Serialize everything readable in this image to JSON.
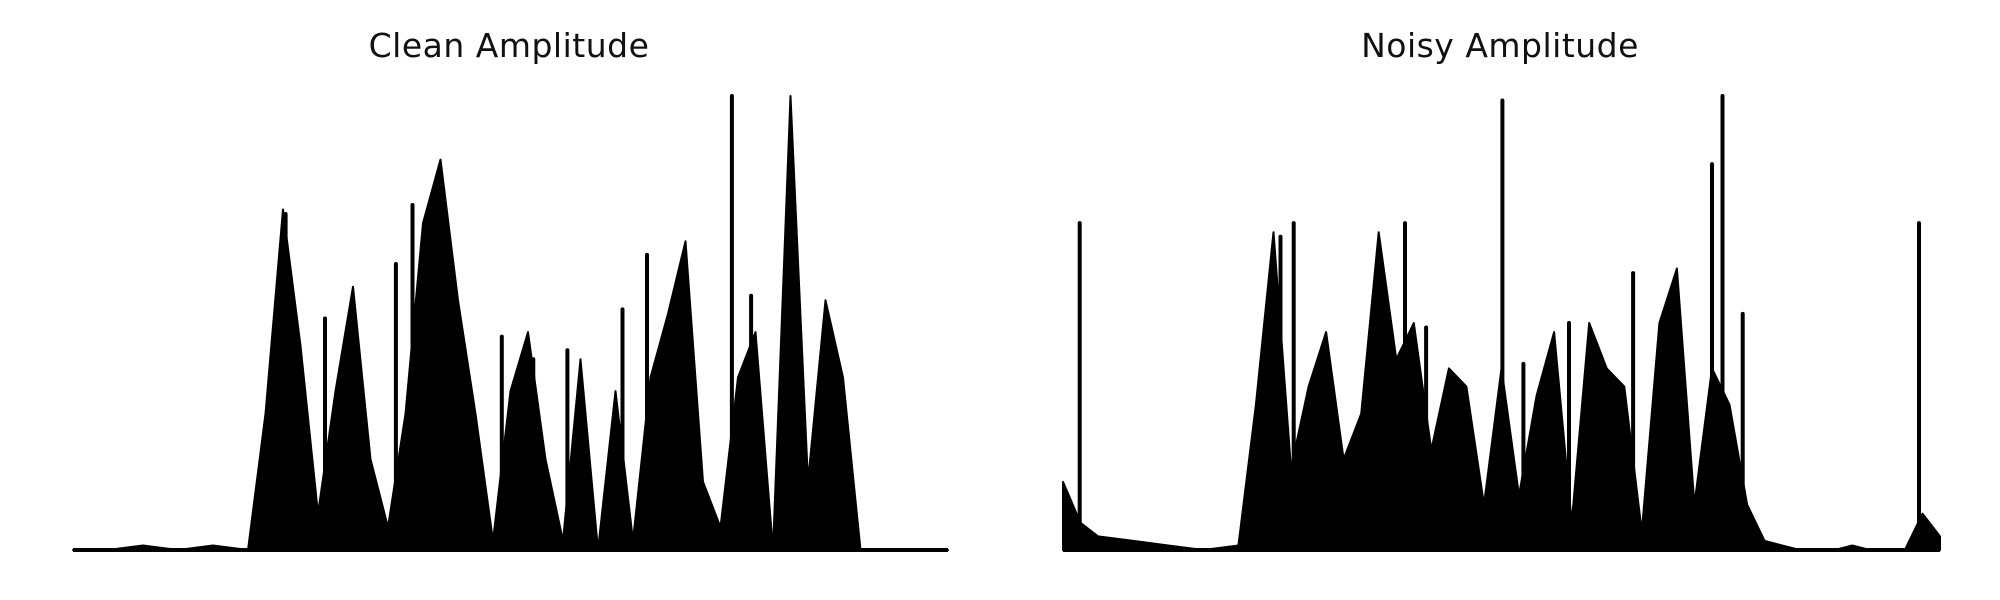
{
  "chart_data": [
    {
      "type": "area",
      "title": "Clean Amplitude",
      "xlabel": "",
      "ylabel": "",
      "axes_visible": false,
      "grid": false,
      "color": "#000000",
      "ylim": [
        0,
        1
      ],
      "x": [
        0,
        0.04,
        0.08,
        0.12,
        0.16,
        0.2,
        0.22,
        0.24,
        0.26,
        0.28,
        0.3,
        0.32,
        0.34,
        0.36,
        0.38,
        0.4,
        0.42,
        0.44,
        0.46,
        0.48,
        0.5,
        0.52,
        0.54,
        0.56,
        0.58,
        0.6,
        0.62,
        0.64,
        0.66,
        0.68,
        0.7,
        0.72,
        0.74,
        0.76,
        0.78,
        0.8,
        0.82,
        0.84,
        0.86,
        0.88,
        0.9,
        0.92,
        0.94,
        0.96,
        0.98,
        1.0
      ],
      "values": [
        0.0,
        0.0,
        0.01,
        0.0,
        0.01,
        0.0,
        0.3,
        0.75,
        0.45,
        0.08,
        0.35,
        0.58,
        0.2,
        0.05,
        0.3,
        0.72,
        0.86,
        0.55,
        0.3,
        0.02,
        0.35,
        0.48,
        0.2,
        0.02,
        0.42,
        0.0,
        0.35,
        0.02,
        0.38,
        0.52,
        0.68,
        0.15,
        0.05,
        0.38,
        0.48,
        0.0,
        1.0,
        0.15,
        0.55,
        0.38,
        0.0,
        0.0,
        0.0,
        0.0,
        0.0,
        0.0
      ],
      "peaks": [
        {
          "x": 0.243,
          "y": 0.74
        },
        {
          "x": 0.288,
          "y": 0.51
        },
        {
          "x": 0.369,
          "y": 0.63
        },
        {
          "x": 0.388,
          "y": 0.76
        },
        {
          "x": 0.415,
          "y": 0.49
        },
        {
          "x": 0.49,
          "y": 0.47
        },
        {
          "x": 0.526,
          "y": 0.42
        },
        {
          "x": 0.565,
          "y": 0.44
        },
        {
          "x": 0.628,
          "y": 0.53
        },
        {
          "x": 0.656,
          "y": 0.65
        },
        {
          "x": 0.753,
          "y": 1.0
        },
        {
          "x": 0.775,
          "y": 0.56
        }
      ]
    },
    {
      "type": "area",
      "title": "Noisy Amplitude",
      "xlabel": "",
      "ylabel": "",
      "axes_visible": false,
      "grid": false,
      "color": "#000000",
      "ylim": [
        0,
        1
      ],
      "x": [
        0,
        0.02,
        0.04,
        0.08,
        0.12,
        0.16,
        0.2,
        0.22,
        0.24,
        0.26,
        0.28,
        0.3,
        0.32,
        0.34,
        0.36,
        0.38,
        0.4,
        0.42,
        0.44,
        0.46,
        0.48,
        0.5,
        0.52,
        0.54,
        0.56,
        0.58,
        0.6,
        0.62,
        0.64,
        0.66,
        0.68,
        0.7,
        0.72,
        0.74,
        0.76,
        0.78,
        0.8,
        0.82,
        0.84,
        0.86,
        0.88,
        0.9,
        0.92,
        0.94,
        0.96,
        0.98,
        1.0
      ],
      "values": [
        0.15,
        0.06,
        0.03,
        0.02,
        0.01,
        0.0,
        0.01,
        0.32,
        0.7,
        0.18,
        0.36,
        0.48,
        0.2,
        0.3,
        0.7,
        0.42,
        0.5,
        0.22,
        0.4,
        0.36,
        0.1,
        0.4,
        0.12,
        0.34,
        0.48,
        0.06,
        0.5,
        0.4,
        0.36,
        0.04,
        0.5,
        0.62,
        0.1,
        0.4,
        0.32,
        0.1,
        0.02,
        0.01,
        0.0,
        0.0,
        0.0,
        0.01,
        0.0,
        0.0,
        0.0,
        0.08,
        0.03
      ],
      "peaks": [
        {
          "x": 0.019,
          "y": 0.72
        },
        {
          "x": 0.248,
          "y": 0.69
        },
        {
          "x": 0.263,
          "y": 0.72
        },
        {
          "x": 0.39,
          "y": 0.72
        },
        {
          "x": 0.414,
          "y": 0.49
        },
        {
          "x": 0.501,
          "y": 0.99
        },
        {
          "x": 0.525,
          "y": 0.41
        },
        {
          "x": 0.577,
          "y": 0.5
        },
        {
          "x": 0.65,
          "y": 0.61
        },
        {
          "x": 0.74,
          "y": 0.85
        },
        {
          "x": 0.752,
          "y": 1.0
        },
        {
          "x": 0.775,
          "y": 0.52
        },
        {
          "x": 0.976,
          "y": 0.72
        }
      ]
    }
  ]
}
